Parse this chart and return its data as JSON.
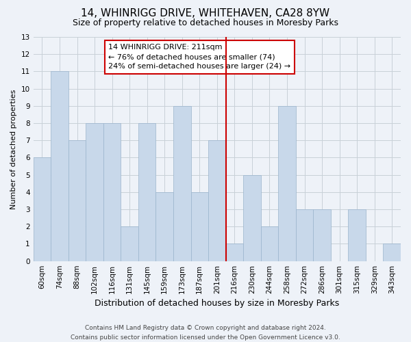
{
  "title": "14, WHINRIGG DRIVE, WHITEHAVEN, CA28 8YW",
  "subtitle": "Size of property relative to detached houses in Moresby Parks",
  "xlabel": "Distribution of detached houses by size in Moresby Parks",
  "ylabel": "Number of detached properties",
  "footer_line1": "Contains HM Land Registry data © Crown copyright and database right 2024.",
  "footer_line2": "Contains public sector information licensed under the Open Government Licence v3.0.",
  "categories": [
    "60sqm",
    "74sqm",
    "88sqm",
    "102sqm",
    "116sqm",
    "131sqm",
    "145sqm",
    "159sqm",
    "173sqm",
    "187sqm",
    "201sqm",
    "216sqm",
    "230sqm",
    "244sqm",
    "258sqm",
    "272sqm",
    "286sqm",
    "301sqm",
    "315sqm",
    "329sqm",
    "343sqm"
  ],
  "values": [
    6,
    11,
    7,
    8,
    8,
    2,
    8,
    4,
    9,
    4,
    7,
    1,
    5,
    2,
    9,
    3,
    3,
    0,
    3,
    0,
    1
  ],
  "bar_color": "#c8d8ea",
  "bar_edge_color": "#9ab4cc",
  "bar_width": 1.0,
  "reference_line_x": 10.5,
  "reference_line_color": "#cc0000",
  "annotation_box_text": "14 WHINRIGG DRIVE: 211sqm\n← 76% of detached houses are smaller (74)\n24% of semi-detached houses are larger (24) →",
  "ylim": [
    0,
    13
  ],
  "yticks": [
    0,
    1,
    2,
    3,
    4,
    5,
    6,
    7,
    8,
    9,
    10,
    11,
    12,
    13
  ],
  "grid_color": "#c8d0d8",
  "background_color": "#eef2f8",
  "title_fontsize": 11,
  "subtitle_fontsize": 9,
  "xlabel_fontsize": 9,
  "ylabel_fontsize": 8,
  "tick_fontsize": 7.5,
  "annotation_fontsize": 8,
  "footer_fontsize": 6.5
}
